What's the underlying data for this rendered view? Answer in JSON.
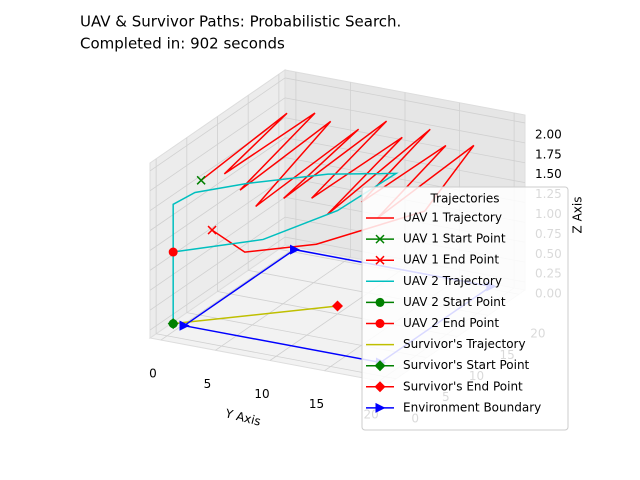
{
  "chart_data": {
    "type": "line3d",
    "title": "UAV & Survivor Paths: Probabilistic Search.",
    "subtitle": "Completed in: 902 seconds",
    "y_label": "Y Axis",
    "z_label": "Z Axis",
    "xlim": [
      -1,
      21
    ],
    "ylim": [
      -1,
      21
    ],
    "zlim": [
      -0.1,
      2.1
    ],
    "xticks": [
      0,
      5,
      10,
      15,
      20
    ],
    "yticks": [
      0,
      5,
      10,
      15,
      20
    ],
    "zticks": [
      {
        "value": 0,
        "label": "0.00"
      },
      {
        "value": 0.25,
        "label": "0.25"
      },
      {
        "value": 0.5,
        "label": "0.50"
      },
      {
        "value": 0.75,
        "label": "0.75"
      },
      {
        "value": 1,
        "label": "1.00"
      },
      {
        "value": 1.25,
        "label": "1.25"
      },
      {
        "value": 1.5,
        "label": "1.50"
      },
      {
        "value": 1.75,
        "label": "1.75"
      },
      {
        "value": 2,
        "label": "2.00"
      }
    ],
    "grid": true,
    "legend_title": "Trajectories",
    "series": [
      {
        "name": "UAV 1 Trajectory",
        "color": "#ff0000",
        "x": [
          2,
          16,
          4,
          17,
          3,
          16,
          2,
          17,
          3,
          18,
          4,
          17,
          3,
          18,
          5,
          17,
          4,
          18,
          10,
          3,
          2,
          2
        ],
        "y": [
          2,
          2,
          3,
          4,
          5,
          6,
          7,
          8,
          9,
          10,
          11,
          12,
          13,
          14,
          15,
          16,
          17,
          18,
          18,
          12,
          6,
          3
        ],
        "z": [
          1.8,
          1.9,
          1.8,
          1.9,
          1.7,
          1.9,
          1.6,
          1.8,
          1.7,
          1.9,
          1.7,
          1.8,
          1.6,
          1.9,
          1.7,
          1.8,
          1.6,
          1.8,
          1.4,
          1.2,
          1.0,
          1.2
        ]
      },
      {
        "name": "UAV 1 Start Point",
        "color": "#008000",
        "marker": "x",
        "x": [
          2
        ],
        "y": [
          2
        ],
        "z": [
          1.8
        ]
      },
      {
        "name": "UAV 1 End Point",
        "color": "#ff0000",
        "marker": "x",
        "x": [
          2
        ],
        "y": [
          3
        ],
        "z": [
          1.2
        ]
      },
      {
        "name": "UAV 2 Trajectory",
        "color": "#00bfbf",
        "x": [
          1,
          1,
          1,
          6,
          12,
          16,
          10,
          5,
          1
        ],
        "y": [
          0,
          0,
          2,
          4,
          8,
          12,
          10,
          6,
          0
        ],
        "z": [
          0,
          1.5,
          1.7,
          1.6,
          1.5,
          1.4,
          1.2,
          1.0,
          0.9
        ]
      },
      {
        "name": "UAV 2 Start Point",
        "color": "#008000",
        "marker": "o",
        "x": [
          1
        ],
        "y": [
          0
        ],
        "z": [
          0
        ]
      },
      {
        "name": "UAV 2 End Point",
        "color": "#ff0000",
        "marker": "o",
        "x": [
          1
        ],
        "y": [
          0
        ],
        "z": [
          0.9
        ]
      },
      {
        "name": "Survivor's Trajectory",
        "color": "#bfbf00",
        "x": [
          1,
          10
        ],
        "y": [
          0,
          10
        ],
        "z": [
          0,
          0
        ]
      },
      {
        "name": "Survivor's Start Point",
        "color": "#008000",
        "marker": "D",
        "x": [
          1
        ],
        "y": [
          0
        ],
        "z": [
          0
        ]
      },
      {
        "name": "Survivor's End Point",
        "color": "#ff0000",
        "marker": "D",
        "x": [
          10
        ],
        "y": [
          10
        ],
        "z": [
          0
        ]
      },
      {
        "name": "Environment Boundary",
        "color": "#0000ff",
        "marker": ">",
        "x": [
          1,
          19,
          19,
          1,
          1
        ],
        "y": [
          1,
          1,
          19,
          19,
          1
        ],
        "z": [
          0,
          0,
          0,
          0,
          0
        ]
      }
    ]
  }
}
